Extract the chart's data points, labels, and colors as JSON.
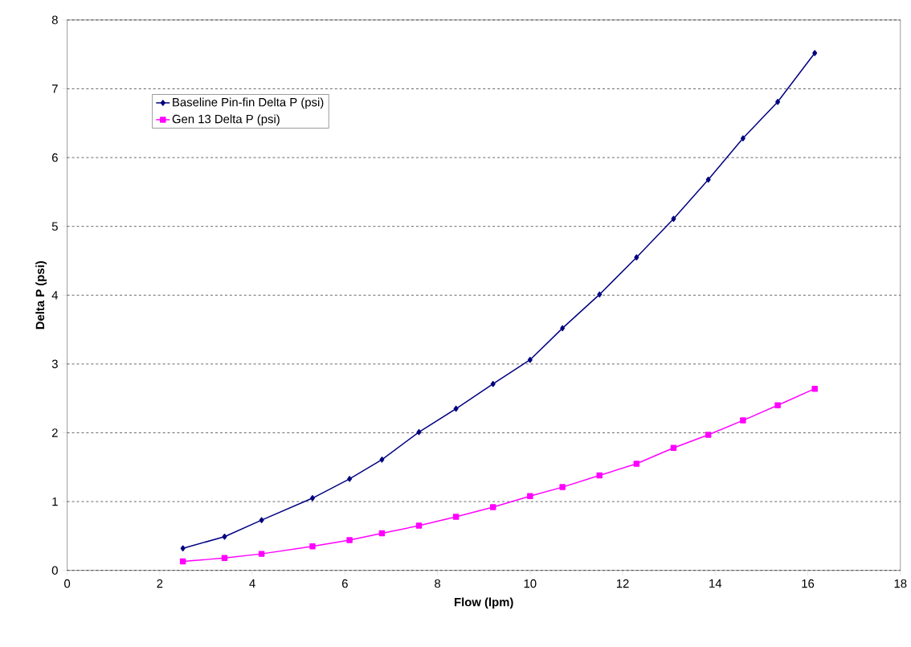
{
  "chart_data": {
    "type": "line",
    "xlabel": "Flow (lpm)",
    "ylabel": "Delta P (psi)",
    "x": [
      2.5,
      3.4,
      4.2,
      5.3,
      6.1,
      6.8,
      7.6,
      8.4,
      9.2,
      10.0,
      10.7,
      11.5,
      12.3,
      13.1,
      13.85,
      14.6,
      15.35,
      16.15
    ],
    "series": [
      {
        "name": "Baseline Pin-fin Delta P (psi)",
        "color": "#000080",
        "marker": "diamond",
        "values": [
          0.32,
          0.49,
          0.73,
          1.05,
          1.33,
          1.61,
          2.01,
          2.35,
          2.71,
          3.06,
          3.52,
          4.01,
          4.55,
          5.11,
          5.68,
          6.28,
          6.81,
          7.52
        ]
      },
      {
        "name": "Gen 13 Delta P (psi)",
        "color": "#ff00ff",
        "marker": "square",
        "values": [
          0.13,
          0.18,
          0.24,
          0.35,
          0.44,
          0.54,
          0.65,
          0.78,
          0.92,
          1.08,
          1.21,
          1.38,
          1.55,
          1.78,
          1.97,
          2.18,
          2.4,
          2.64
        ]
      }
    ],
    "xlim": [
      0,
      18
    ],
    "xticks": [
      0,
      2,
      4,
      6,
      8,
      10,
      12,
      14,
      16,
      18
    ],
    "ylim": [
      0,
      8
    ],
    "yticks": [
      0,
      1,
      2,
      3,
      4,
      5,
      6,
      7,
      8
    ],
    "grid": "y",
    "legend": "top left",
    "line_style": "solid"
  }
}
